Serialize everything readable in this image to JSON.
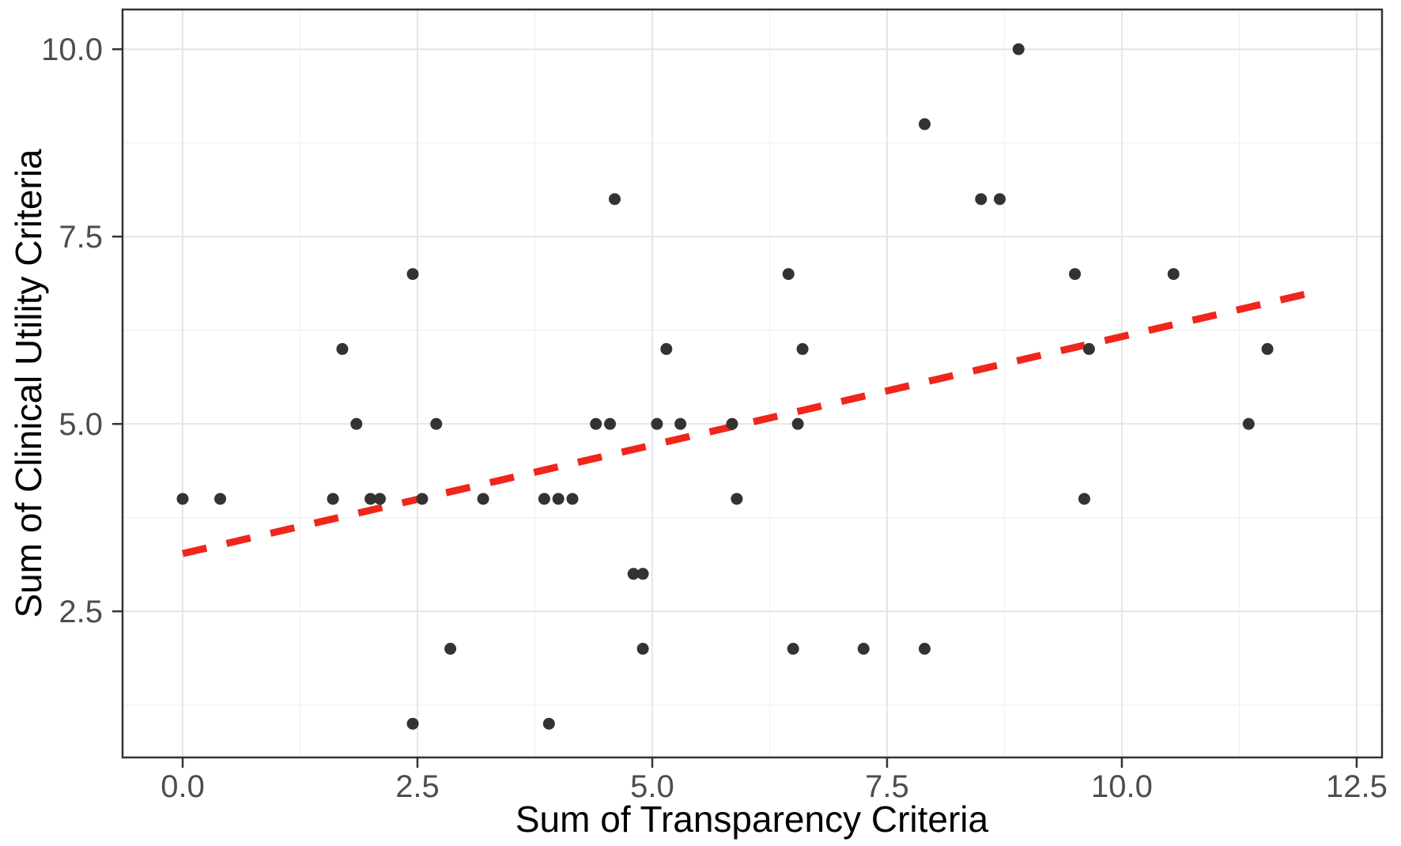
{
  "chart_data": {
    "type": "scatter",
    "title": "",
    "xlabel": "Sum of Transparency Criteria",
    "ylabel": "Sum of Clinical Utility Criteria",
    "xlim": [
      -0.64,
      12.77
    ],
    "ylim": [
      0.55,
      10.53
    ],
    "grid": "major+minor",
    "legend": "none",
    "x_ticks": {
      "values": [
        0,
        2.5,
        5,
        7.5,
        10,
        12.5
      ],
      "labels": [
        "0.0",
        "2.5",
        "5.0",
        "7.5",
        "10.0",
        "12.5"
      ]
    },
    "y_ticks": {
      "values": [
        2.5,
        5,
        7.5,
        10
      ],
      "labels": [
        "2.5",
        "5.0",
        "7.5",
        "10.0"
      ]
    },
    "x_minor": [
      1.25,
      3.75,
      6.25,
      8.75,
      11.25
    ],
    "y_minor": [
      1.25,
      3.75,
      6.25,
      8.75
    ],
    "point_color": "#333333",
    "point_radius_px": 7.5,
    "points": [
      [
        0.0,
        4
      ],
      [
        0.4,
        4
      ],
      [
        1.6,
        4
      ],
      [
        2.0,
        4
      ],
      [
        2.1,
        4
      ],
      [
        2.55,
        4
      ],
      [
        3.2,
        4
      ],
      [
        3.85,
        4
      ],
      [
        4.0,
        4
      ],
      [
        4.15,
        4
      ],
      [
        5.9,
        4
      ],
      [
        9.6,
        4
      ],
      [
        1.85,
        5
      ],
      [
        2.7,
        5
      ],
      [
        4.4,
        5
      ],
      [
        4.55,
        5
      ],
      [
        5.05,
        5
      ],
      [
        5.3,
        5
      ],
      [
        5.85,
        5
      ],
      [
        6.55,
        5
      ],
      [
        11.35,
        5
      ],
      [
        1.7,
        6
      ],
      [
        5.15,
        6
      ],
      [
        6.6,
        6
      ],
      [
        9.65,
        6
      ],
      [
        11.55,
        6
      ],
      [
        2.45,
        7
      ],
      [
        6.45,
        7
      ],
      [
        9.5,
        7
      ],
      [
        10.55,
        7
      ],
      [
        4.6,
        8
      ],
      [
        8.5,
        8
      ],
      [
        8.7,
        8
      ],
      [
        7.9,
        9
      ],
      [
        8.9,
        10
      ],
      [
        4.8,
        3
      ],
      [
        4.9,
        3
      ],
      [
        2.85,
        2
      ],
      [
        4.9,
        2
      ],
      [
        6.5,
        2
      ],
      [
        7.25,
        2
      ],
      [
        7.9,
        2
      ],
      [
        2.45,
        1
      ],
      [
        3.9,
        1
      ]
    ],
    "trend_line": {
      "type": "linear",
      "style": "dashed",
      "color": "#F0261C",
      "x1": 0.0,
      "y1": 3.27,
      "x2": 11.95,
      "y2": 6.73
    },
    "colors": {
      "panel_background": "#ffffff",
      "panel_border": "#333333",
      "grid_major": "#e6e6e6",
      "grid_minor": "#f2f2f2",
      "tick_mark": "#333333",
      "tick_label": "#4d4d4d",
      "axis_title": "#000000"
    }
  }
}
